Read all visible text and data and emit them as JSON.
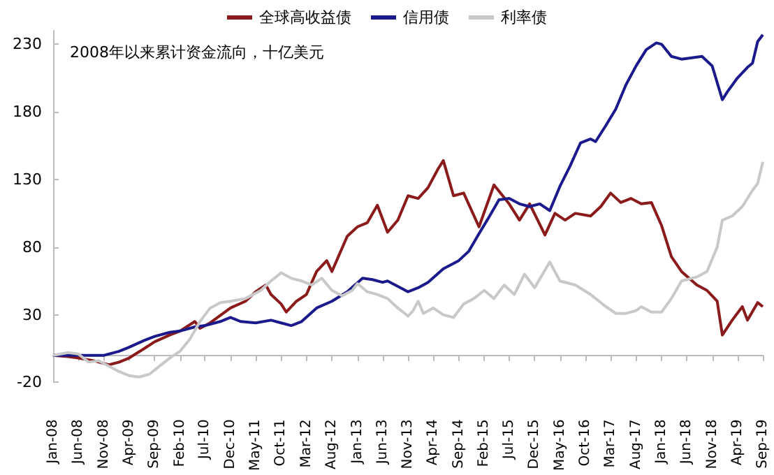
{
  "chart_data": {
    "type": "line",
    "legend": "top",
    "grid": false,
    "marker": "none",
    "line_style": "solid",
    "annotations": [
      "2008年以来累计资金流向，十亿美元"
    ],
    "xlim": [
      "2008-01",
      "2019-09"
    ],
    "xticks": [
      {
        "value": "2008-01",
        "label": "Jan-08"
      },
      {
        "value": "2008-06",
        "label": "Jun-08"
      },
      {
        "value": "2008-11",
        "label": "Nov-08"
      },
      {
        "value": "2009-04",
        "label": "Apr-09"
      },
      {
        "value": "2009-09",
        "label": "Sep-09"
      },
      {
        "value": "2010-02",
        "label": "Feb-10"
      },
      {
        "value": "2010-07",
        "label": "Jul-10"
      },
      {
        "value": "2010-12",
        "label": "Dec-10"
      },
      {
        "value": "2011-05",
        "label": "May-11"
      },
      {
        "value": "2011-10",
        "label": "Oct-11"
      },
      {
        "value": "2012-03",
        "label": "Mar-12"
      },
      {
        "value": "2012-08",
        "label": "Aug-12"
      },
      {
        "value": "2013-01",
        "label": "Jan-13"
      },
      {
        "value": "2013-06",
        "label": "Jun-13"
      },
      {
        "value": "2013-11",
        "label": "Nov-13"
      },
      {
        "value": "2014-04",
        "label": "Apr-14"
      },
      {
        "value": "2014-09",
        "label": "Sep-14"
      },
      {
        "value": "2015-02",
        "label": "Feb-15"
      },
      {
        "value": "2015-07",
        "label": "Jul-15"
      },
      {
        "value": "2015-12",
        "label": "Dec-15"
      },
      {
        "value": "2016-05",
        "label": "May-16"
      },
      {
        "value": "2016-10",
        "label": "Oct-16"
      },
      {
        "value": "2017-03",
        "label": "Mar-17"
      },
      {
        "value": "2017-08",
        "label": "Aug-17"
      },
      {
        "value": "2018-01",
        "label": "Jan-18"
      },
      {
        "value": "2018-06",
        "label": "Jun-18"
      },
      {
        "value": "2018-11",
        "label": "Nov-18"
      },
      {
        "value": "2019-04",
        "label": "Apr-19"
      },
      {
        "value": "2019-09",
        "label": "Sep-19"
      }
    ],
    "ylim": [
      -20,
      240
    ],
    "yticks": [
      -20,
      30,
      80,
      130,
      180,
      230
    ],
    "series": [
      {
        "name": "全球高收益债",
        "color": "#8b1a1a",
        "x": [
          "2008-01",
          "2008-04",
          "2008-06",
          "2008-09",
          "2008-12",
          "2009-02",
          "2009-04",
          "2009-07",
          "2009-09",
          "2009-12",
          "2010-02",
          "2010-05",
          "2010-06",
          "2010-08",
          "2010-12",
          "2011-03",
          "2011-05",
          "2011-07",
          "2011-08",
          "2011-10",
          "2011-11",
          "2012-01",
          "2012-03",
          "2012-05",
          "2012-07",
          "2012-08",
          "2012-11",
          "2013-01",
          "2013-03",
          "2013-05",
          "2013-07",
          "2013-09",
          "2013-11",
          "2014-01",
          "2014-03",
          "2014-05",
          "2014-06",
          "2014-08",
          "2014-10",
          "2015-01",
          "2015-04",
          "2015-07",
          "2015-09",
          "2015-11",
          "2016-02",
          "2016-04",
          "2016-06",
          "2016-08",
          "2016-11",
          "2017-01",
          "2017-03",
          "2017-05",
          "2017-07",
          "2017-09",
          "2017-11",
          "2018-01",
          "2018-03",
          "2018-05",
          "2018-08",
          "2018-10",
          "2018-12",
          "2019-01",
          "2019-03",
          "2019-05",
          "2019-06",
          "2019-08",
          "2019-09"
        ],
        "values": [
          0,
          -1,
          -2,
          -4,
          -7,
          -5,
          -2,
          5,
          10,
          15,
          18,
          25,
          20,
          24,
          35,
          40,
          47,
          52,
          45,
          38,
          32,
          40,
          45,
          62,
          70,
          62,
          88,
          95,
          98,
          111,
          91,
          100,
          118,
          116,
          124,
          138,
          144,
          118,
          120,
          95,
          126,
          112,
          100,
          112,
          89,
          105,
          100,
          105,
          103,
          110,
          120,
          113,
          116,
          112,
          113,
          96,
          73,
          62,
          52,
          48,
          40,
          15,
          26,
          36,
          26,
          39,
          36
        ]
      },
      {
        "name": "信用债",
        "color": "#1a1a8c",
        "x": [
          "2008-01",
          "2008-06",
          "2008-11",
          "2009-02",
          "2009-04",
          "2009-07",
          "2009-09",
          "2009-12",
          "2010-02",
          "2010-05",
          "2010-07",
          "2010-10",
          "2010-12",
          "2011-02",
          "2011-05",
          "2011-08",
          "2011-10",
          "2011-12",
          "2012-02",
          "2012-05",
          "2012-08",
          "2012-11",
          "2013-02",
          "2013-04",
          "2013-06",
          "2013-07",
          "2013-09",
          "2013-11",
          "2014-01",
          "2014-03",
          "2014-06",
          "2014-09",
          "2014-11",
          "2015-01",
          "2015-03",
          "2015-05",
          "2015-07",
          "2015-09",
          "2015-11",
          "2016-01",
          "2016-03",
          "2016-05",
          "2016-07",
          "2016-09",
          "2016-11",
          "2016-12",
          "2017-02",
          "2017-04",
          "2017-06",
          "2017-08",
          "2017-10",
          "2017-12",
          "2018-01",
          "2018-03",
          "2018-05",
          "2018-07",
          "2018-09",
          "2018-11",
          "2019-01",
          "2019-02",
          "2019-04",
          "2019-06",
          "2019-07",
          "2019-08",
          "2019-09"
        ],
        "values": [
          0,
          0,
          0,
          3,
          6,
          11,
          14,
          17,
          18,
          21,
          22,
          25,
          28,
          25,
          24,
          26,
          24,
          22,
          25,
          35,
          40,
          47,
          57,
          56,
          54,
          55,
          51,
          47,
          50,
          54,
          64,
          70,
          77,
          90,
          102,
          115,
          116,
          112,
          110,
          112,
          107,
          125,
          140,
          157,
          160,
          158,
          170,
          182,
          200,
          214,
          226,
          231,
          230,
          221,
          219,
          220,
          221,
          214,
          189,
          195,
          205,
          213,
          216,
          232,
          237
        ]
      },
      {
        "name": "利率债",
        "color": "#c8c8c8",
        "x": [
          "2008-01",
          "2008-04",
          "2008-06",
          "2008-08",
          "2008-10",
          "2008-12",
          "2009-02",
          "2009-04",
          "2009-06",
          "2009-08",
          "2009-10",
          "2009-12",
          "2010-02",
          "2010-04",
          "2010-06",
          "2010-08",
          "2010-10",
          "2010-12",
          "2011-03",
          "2011-06",
          "2011-08",
          "2011-10",
          "2011-12",
          "2012-02",
          "2012-04",
          "2012-06",
          "2012-08",
          "2012-10",
          "2012-12",
          "2013-01",
          "2013-03",
          "2013-05",
          "2013-07",
          "2013-09",
          "2013-11",
          "2013-12",
          "2014-01",
          "2014-02",
          "2014-04",
          "2014-06",
          "2014-08",
          "2014-10",
          "2014-12",
          "2015-02",
          "2015-04",
          "2015-06",
          "2015-08",
          "2015-10",
          "2015-12",
          "2016-03",
          "2016-05",
          "2016-08",
          "2016-11",
          "2017-02",
          "2017-04",
          "2017-06",
          "2017-08",
          "2017-09",
          "2017-11",
          "2018-01",
          "2018-03",
          "2018-05",
          "2018-08",
          "2018-10",
          "2018-12",
          "2019-01",
          "2019-03",
          "2019-05",
          "2019-07",
          "2019-08",
          "2019-09"
        ],
        "values": [
          0,
          2,
          1,
          -5,
          -4,
          -8,
          -12,
          -15,
          -16,
          -14,
          -8,
          -2,
          3,
          12,
          25,
          35,
          39,
          40,
          42,
          48,
          55,
          61,
          57,
          55,
          52,
          57,
          48,
          44,
          48,
          53,
          47,
          45,
          42,
          35,
          29,
          33,
          40,
          31,
          35,
          30,
          28,
          38,
          42,
          48,
          42,
          52,
          45,
          60,
          50,
          69,
          55,
          52,
          45,
          36,
          31,
          31,
          33,
          36,
          32,
          32,
          42,
          55,
          58,
          62,
          80,
          100,
          103,
          110,
          122,
          127,
          143
        ]
      }
    ]
  }
}
